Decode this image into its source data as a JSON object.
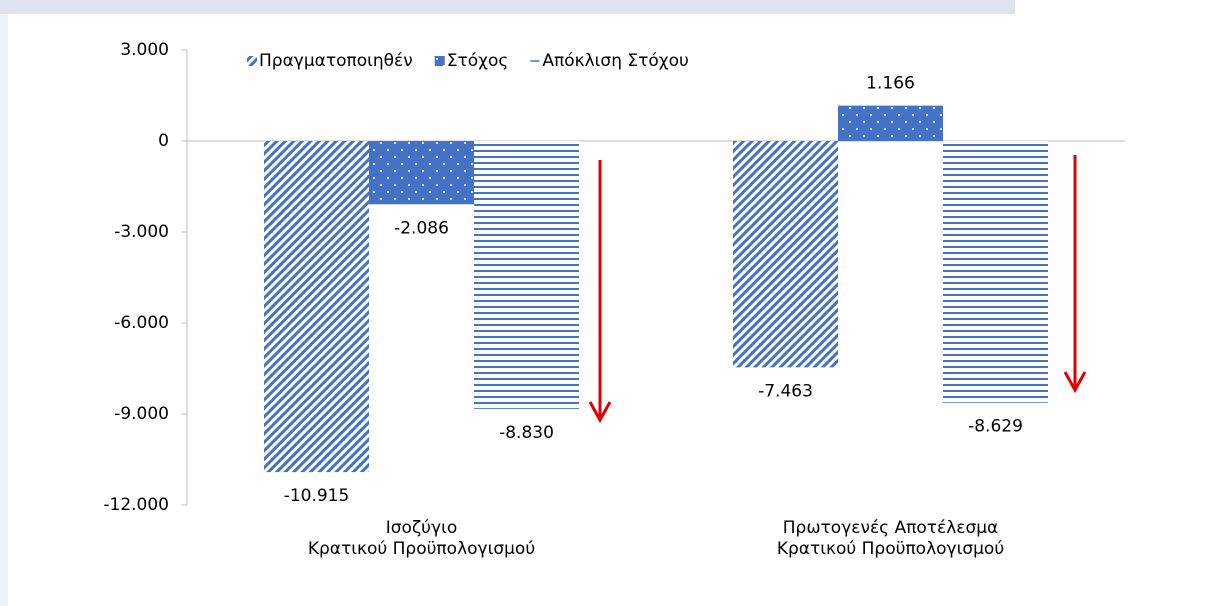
{
  "chart_data": {
    "type": "bar",
    "categories": [
      "Ισοζύγιο\nΚρατικού Προϋπολογισμού",
      "Πρωτογενές Αποτέλεσμα\nΚρατικού Προϋπολογισμού"
    ],
    "series": [
      {
        "name": "Πραγματοποιηθέν",
        "color": "#4472c4",
        "values": [
          -10915,
          -7463
        ],
        "value_labels": [
          "-10.915",
          "-7.463"
        ]
      },
      {
        "name": "Στόχος",
        "color": "#4472c4",
        "values": [
          -2086,
          1166
        ],
        "value_labels": [
          "-2.086",
          "1.166"
        ]
      },
      {
        "name": "Απόκλιση Στόχου",
        "color": "#4472c4",
        "values": [
          -8830,
          -8629
        ],
        "value_labels": [
          "-8.830",
          "-8.629"
        ]
      }
    ],
    "ylim": [
      -12000,
      3000
    ],
    "yticks": [
      {
        "value": -12000,
        "label": "-12.000"
      },
      {
        "value": -9000,
        "label": "-9.000"
      },
      {
        "value": -6000,
        "label": "-6.000"
      },
      {
        "value": -3000,
        "label": "-3.000"
      },
      0,
      {
        "value": 3000,
        "label": "3.000"
      }
    ],
    "legend": "top"
  }
}
